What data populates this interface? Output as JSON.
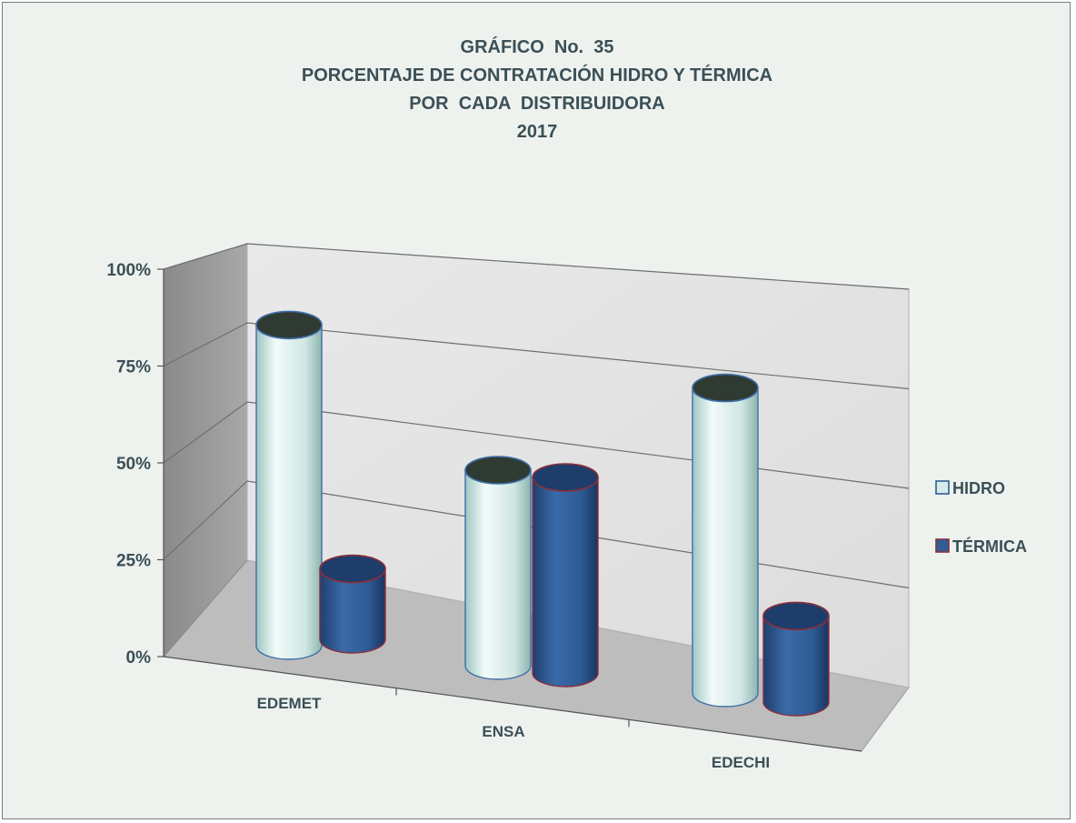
{
  "title": {
    "line1": "GRÁFICO  No.  35",
    "line2": "PORCENTAJE DE CONTRATACIÓN HIDRO Y TÉRMICA",
    "line3": "POR  CADA  DISTRIBUIDORA",
    "line4": "2017"
  },
  "chart_data": {
    "type": "bar",
    "style": "3d-cylinder",
    "categories": [
      "EDEMET",
      "ENSA",
      "EDECHI"
    ],
    "series": [
      {
        "name": "HIDRO",
        "values": [
          82,
          50,
          78
        ],
        "color": "#c7e2de"
      },
      {
        "name": "TÉRMICA",
        "values": [
          18,
          50,
          22
        ],
        "color": "#2f5d95"
      }
    ],
    "ylim": [
      0,
      100
    ],
    "yticks": [
      "0%",
      "25%",
      "50%",
      "75%",
      "100%"
    ],
    "grid": true,
    "legend_position": "right"
  }
}
